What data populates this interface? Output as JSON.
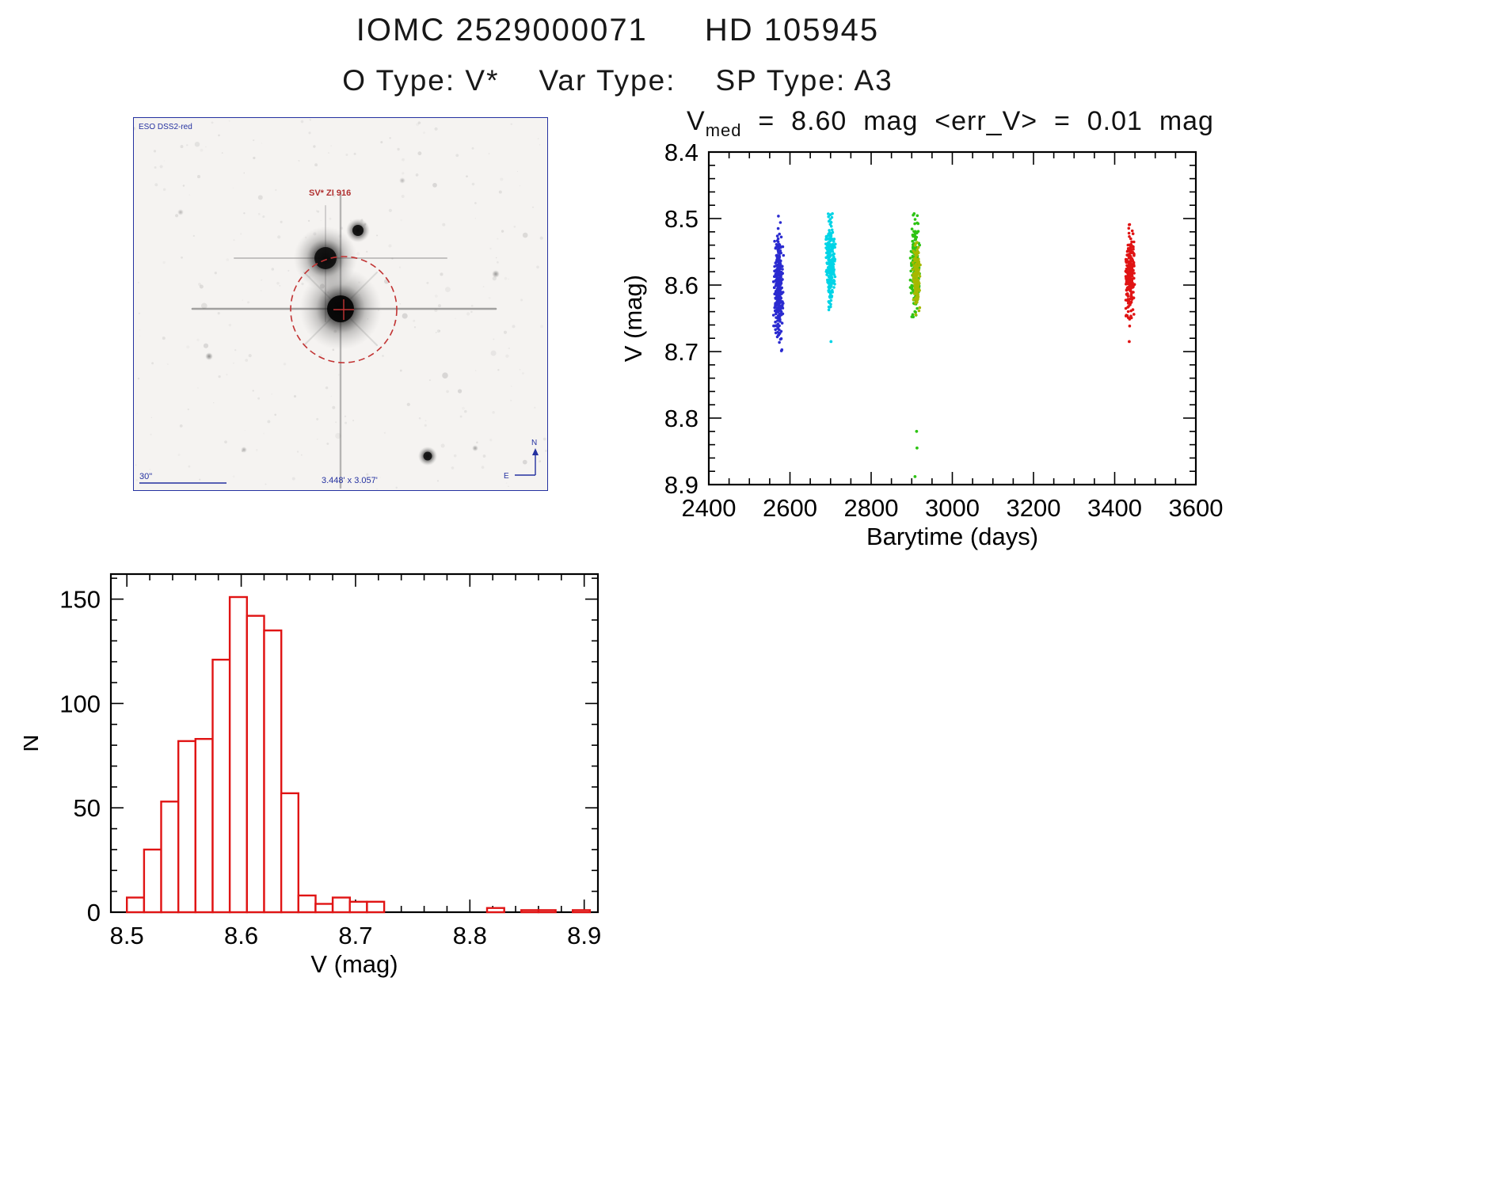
{
  "header": {
    "catalog_id": "IOMC 2529000071",
    "star_name": "HD 105945",
    "object_type": "O Type: V*",
    "var_type": "Var Type:",
    "sp_type": "SP Type: A3"
  },
  "finding_chart": {
    "survey_label": "ESO DSS2-red",
    "target_label": "SV* ZI 916",
    "scale_bar_label": "30\"",
    "fov_label": "3.448' x 3.057'",
    "compass_north": "N",
    "compass_east": "E",
    "annotation_color": "#2431a0",
    "marker_color": "#c23333"
  },
  "chart_data": [
    {
      "id": "lightcurve",
      "type": "scatter",
      "title": {
        "base": "V",
        "sub": "med",
        "rest": "  =  8.60  mag  <err_V>  =  0.01  mag"
      },
      "v_median_mag": 8.6,
      "v_err_mean_mag": 0.01,
      "xlabel": "Barytime (days)",
      "ylabel": "V (mag)",
      "xlim": [
        2400,
        3600
      ],
      "ylim": [
        8.4,
        8.9
      ],
      "y_inverted": true,
      "xticks": [
        2400,
        2600,
        2800,
        3000,
        3200,
        3400,
        3600
      ],
      "yticks": [
        8.4,
        8.5,
        8.6,
        8.7,
        8.8,
        8.9
      ],
      "x_minor": 50,
      "y_minor": 0.02,
      "clusters": [
        {
          "name": "epoch-1-blue",
          "color": "#2b2bd0",
          "x_center": 2572,
          "x_sigma": 5,
          "x_halfwidth": 13,
          "v_center": 8.6,
          "v_sigma": 0.038,
          "v_min": 8.495,
          "v_max": 8.718,
          "n": 300
        },
        {
          "name": "epoch-2-cyan",
          "color": "#00d4e6",
          "x_center": 2700,
          "x_sigma": 5,
          "x_halfwidth": 12,
          "v_center": 8.565,
          "v_sigma": 0.032,
          "v_min": 8.49,
          "v_max": 8.648,
          "n": 240,
          "outliers": [
            [
              2701,
              8.685
            ]
          ]
        },
        {
          "name": "epoch-3-green",
          "color": "#2ec414",
          "x_center": 2908,
          "x_sigma": 5,
          "x_halfwidth": 12,
          "v_center": 8.578,
          "v_sigma": 0.035,
          "v_min": 8.488,
          "v_max": 8.672,
          "n": 210,
          "outliers": [
            [
              2912,
              8.82
            ],
            [
              2913,
              8.845
            ],
            [
              2908,
              8.888
            ]
          ]
        },
        {
          "name": "epoch-3-olive",
          "color": "#a6b800",
          "x_center": 2912,
          "x_sigma": 4,
          "x_halfwidth": 9,
          "v_center": 8.592,
          "v_sigma": 0.026,
          "v_min": 8.505,
          "v_max": 8.66,
          "n": 140
        },
        {
          "name": "epoch-4-red",
          "color": "#e01414",
          "x_center": 3438,
          "x_sigma": 5,
          "x_halfwidth": 11,
          "v_center": 8.585,
          "v_sigma": 0.03,
          "v_min": 8.508,
          "v_max": 8.662,
          "n": 240,
          "outliers": [
            [
              3436,
              8.685
            ]
          ]
        }
      ]
    },
    {
      "id": "histogram",
      "type": "bar",
      "xlabel": "V (mag)",
      "ylabel": "N",
      "color": "#e01414",
      "xlim": [
        8.486,
        8.912
      ],
      "ylim": [
        0,
        162
      ],
      "xticks": [
        8.5,
        8.6,
        8.7,
        8.8,
        8.9
      ],
      "yticks": [
        0,
        50,
        100,
        150
      ],
      "x_minor": 0.02,
      "y_minor": 10,
      "bin_width": 0.015,
      "bins": [
        {
          "x": 8.5,
          "n": 7
        },
        {
          "x": 8.515,
          "n": 30
        },
        {
          "x": 8.53,
          "n": 53
        },
        {
          "x": 8.545,
          "n": 82
        },
        {
          "x": 8.56,
          "n": 83
        },
        {
          "x": 8.575,
          "n": 121
        },
        {
          "x": 8.59,
          "n": 151
        },
        {
          "x": 8.605,
          "n": 142
        },
        {
          "x": 8.62,
          "n": 135
        },
        {
          "x": 8.635,
          "n": 57
        },
        {
          "x": 8.65,
          "n": 8
        },
        {
          "x": 8.665,
          "n": 4
        },
        {
          "x": 8.68,
          "n": 7
        },
        {
          "x": 8.695,
          "n": 5
        },
        {
          "x": 8.71,
          "n": 5
        },
        {
          "x": 8.725,
          "n": 0
        },
        {
          "x": 8.74,
          "n": 0
        },
        {
          "x": 8.755,
          "n": 0
        },
        {
          "x": 8.77,
          "n": 0
        },
        {
          "x": 8.785,
          "n": 0
        },
        {
          "x": 8.8,
          "n": 0
        },
        {
          "x": 8.815,
          "n": 2
        },
        {
          "x": 8.83,
          "n": 0
        },
        {
          "x": 8.845,
          "n": 1
        },
        {
          "x": 8.86,
          "n": 1
        },
        {
          "x": 8.875,
          "n": 0
        },
        {
          "x": 8.89,
          "n": 1
        }
      ]
    }
  ]
}
